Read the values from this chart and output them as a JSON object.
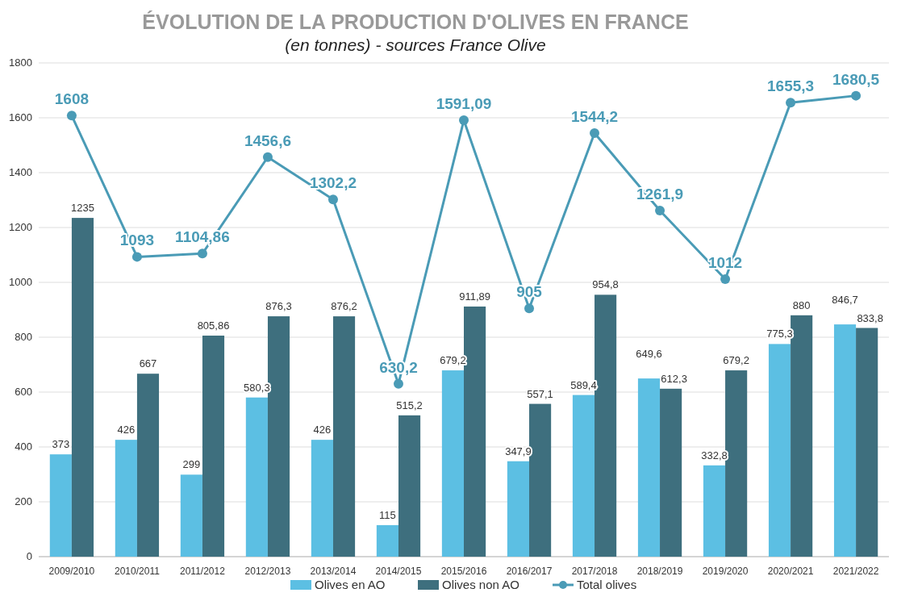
{
  "chart_data": {
    "type": "bar",
    "title": "ÉVOLUTION DE LA PRODUCTION D'OLIVES EN FRANCE",
    "subtitle": "(en tonnes) - sources France Olive",
    "categories": [
      "2009/2010",
      "2010/2011",
      "2011/2012",
      "2012/2013",
      "2013/2014",
      "2014/2015",
      "2015/2016",
      "2016/2017",
      "2017/2018",
      "2018/2019",
      "2019/2020",
      "2020/2021",
      "2021/2022"
    ],
    "series": [
      {
        "name": "Olives en AO",
        "color": "#5cbfe3",
        "values": [
          373,
          426,
          299,
          580.3,
          426,
          115,
          679.2,
          347.9,
          589.4,
          649.6,
          332.8,
          775.3,
          846.7
        ],
        "value_labels": [
          "373",
          "426",
          "299",
          "580,3",
          "426",
          "115",
          "679,2",
          "347,9",
          "589,4",
          "649,6",
          "332,8",
          "775,3",
          "846,7"
        ]
      },
      {
        "name": "Olives non AO",
        "color": "#3e6f7e",
        "values": [
          1235,
          667,
          805.86,
          876.3,
          876.2,
          515.2,
          911.89,
          557.1,
          954.8,
          612.3,
          679.2,
          880,
          833.8
        ],
        "value_labels": [
          "1235",
          "667",
          "805,86",
          "876,3",
          "876,2",
          "515,2",
          "911,89",
          "557,1",
          "954,8",
          "612,3",
          "679,2",
          "880",
          "833,8"
        ]
      },
      {
        "name": "Total olives",
        "type": "line",
        "color": "#4a9bb6",
        "values": [
          1608,
          1093,
          1104.86,
          1456.6,
          1302.2,
          630.2,
          1591.09,
          905,
          1544.2,
          1261.9,
          1012,
          1655.3,
          1680.5
        ],
        "value_labels": [
          "1608",
          "1093",
          "1104,86",
          "1456,6",
          "1302,2",
          "630,2",
          "1591,09",
          "905",
          "1544,2",
          "1261,9",
          "1012",
          "1655,3",
          "1680,5"
        ]
      }
    ],
    "ylim": [
      0,
      1800
    ],
    "yticks": [
      0,
      200,
      400,
      600,
      800,
      1000,
      1200,
      1400,
      1600,
      1800
    ],
    "grid": "y",
    "legend": "bottom",
    "marker": "circle"
  }
}
